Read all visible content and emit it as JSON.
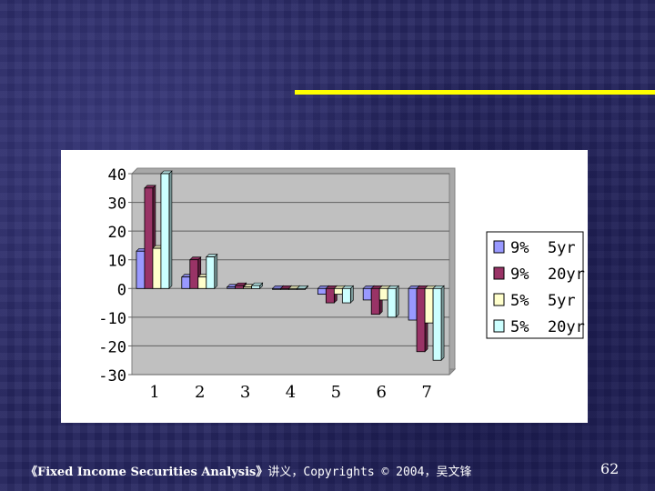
{
  "footer": {
    "book": "《Fixed Income Securities Analysis》",
    "rest": "讲义，Copyrights © 2004，吴文锋"
  },
  "page_number": "62",
  "colors": {
    "accent_line": "#ffff00",
    "plot_area": "#c0c0c0",
    "series": [
      "#9999ff",
      "#993366",
      "#ffffcc",
      "#ccffff"
    ]
  },
  "chart_data": {
    "type": "bar",
    "title": "",
    "xlabel": "",
    "ylabel": "",
    "categories": [
      "1",
      "2",
      "3",
      "4",
      "5",
      "6",
      "7"
    ],
    "ylim": [
      -30,
      40
    ],
    "yticks": [
      "40",
      "30",
      "20",
      "10",
      "0",
      "-10",
      "-20",
      "-30"
    ],
    "grid": true,
    "legend_position": "right",
    "series": [
      {
        "name": "9%  5yr",
        "values": [
          13,
          4,
          0.5,
          0,
          -2,
          -4,
          -11
        ]
      },
      {
        "name": "9%  20yr",
        "values": [
          35,
          10,
          1,
          0,
          -5,
          -9,
          -22
        ]
      },
      {
        "name": "5%  5yr",
        "values": [
          14,
          4,
          0.5,
          0,
          -2,
          -4,
          -12
        ]
      },
      {
        "name": "5%  20yr",
        "values": [
          40,
          11,
          1,
          0,
          -5,
          -10,
          -25
        ]
      }
    ]
  }
}
